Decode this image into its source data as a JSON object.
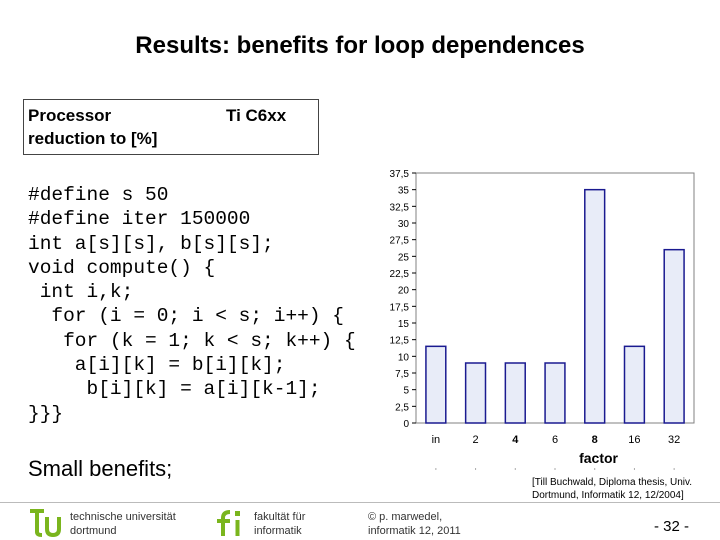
{
  "title": "Results: benefits for loop dependences",
  "info_box": {
    "line1": "Processor",
    "line2": "reduction to [%]",
    "processor": "Ti C6xx"
  },
  "code_lines": [
    "#define s 50",
    "#define iter 150000",
    "int a[s][s], b[s][s];",
    "void compute() {",
    " int i,k;",
    "  for (i = 0; i < s; i++) {",
    "   for (k = 1; k < s; k++) {",
    "    a[i][k] = b[i][k];",
    "     b[i][k] = a[i][k-1];",
    "}}}"
  ],
  "summary": "Small benefits;",
  "citation": {
    "line1": "[Till Buchwald, Diploma thesis, Univ.",
    "line2": "Dortmund, Informatik 12, 12/2004]"
  },
  "footer": {
    "tu_line1": "technische universität",
    "tu_line2": "dortmund",
    "fi_line1": "fakultät für",
    "fi_line2": "informatik",
    "copy_line1": "© p. marwedel,",
    "copy_line2": "informatik 12,  2011",
    "page": "-  32 -"
  },
  "colors": {
    "bar_fill": "#e8ecf8",
    "bar_stroke": "#1a1a90",
    "tu_green": "#7ab51d",
    "plot_border": "#808080"
  },
  "chart_data": {
    "type": "bar",
    "categories": [
      "in",
      "2",
      "4",
      "6",
      "8",
      "16",
      "32"
    ],
    "bold_categories": [
      "4",
      "8"
    ],
    "values": [
      11.5,
      9,
      9,
      9,
      35,
      11.5,
      26
    ],
    "xlabel": "factor",
    "ylabel": "",
    "ylim": [
      0,
      37.5
    ],
    "yticks": [
      "0",
      "2,5",
      "5",
      "7,5",
      "10",
      "12,5",
      "15",
      "17,5",
      "20",
      "22,5",
      "25",
      "27,5",
      "30",
      "32,5",
      "35",
      "37,5"
    ],
    "grid": false,
    "legend": "none"
  }
}
